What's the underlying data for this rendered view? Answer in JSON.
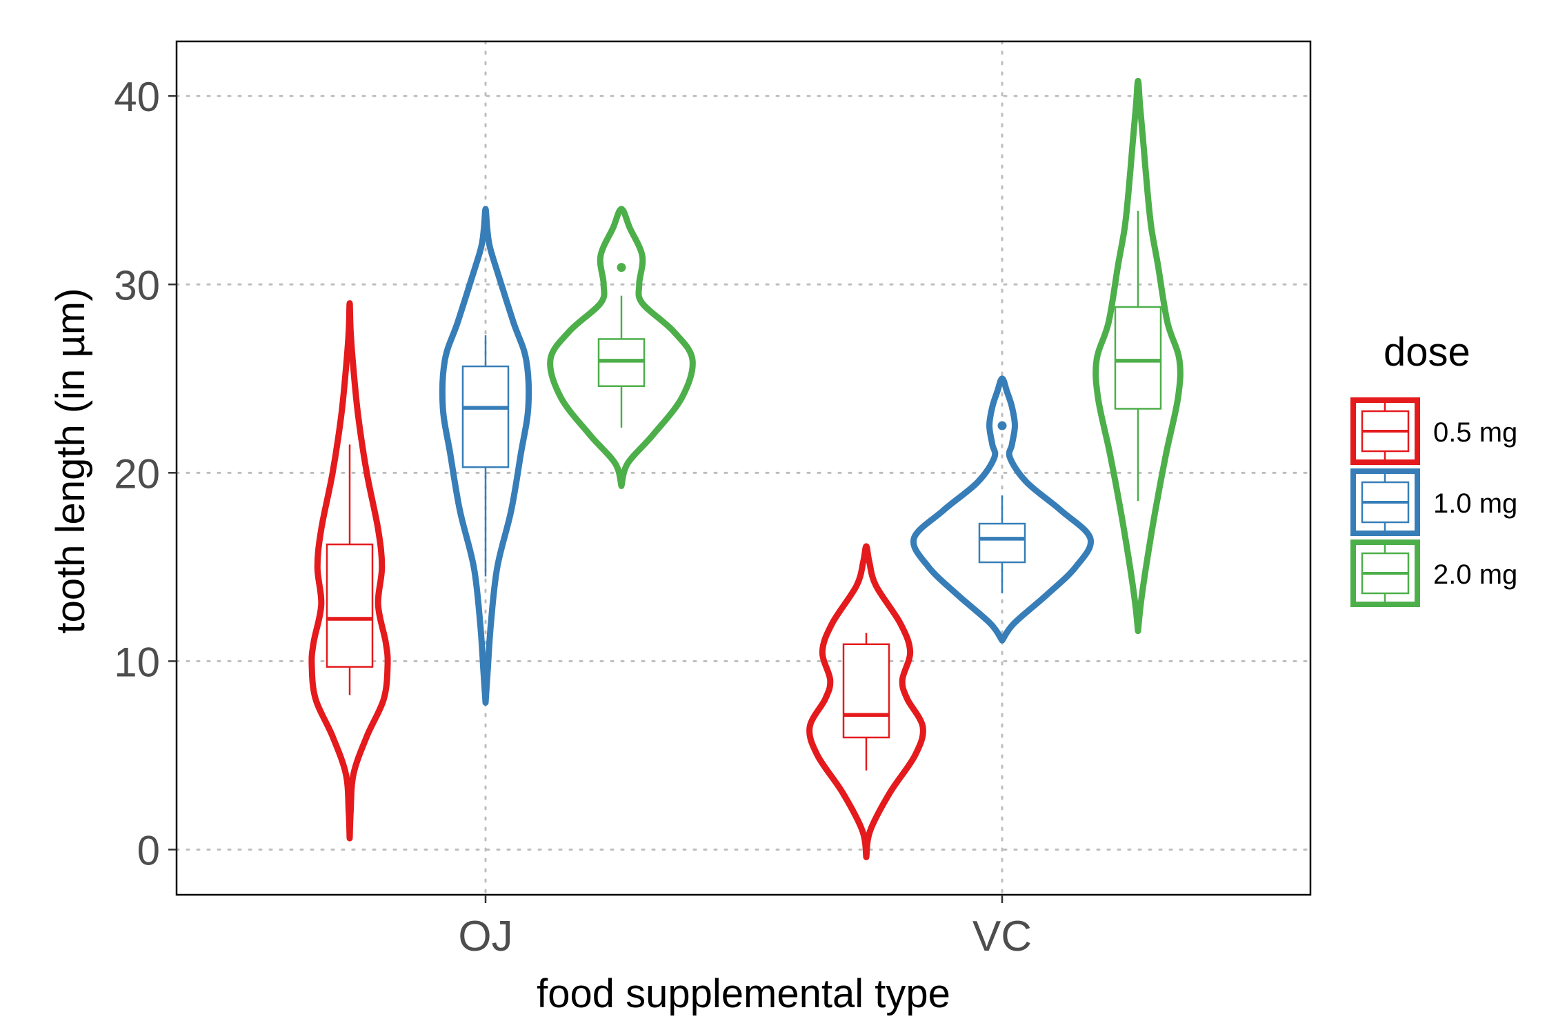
{
  "chart_data": {
    "type": "violin",
    "title": "",
    "xlabel": "food supplemental type",
    "ylabel": "tooth length (in µm)",
    "categories": [
      "OJ",
      "VC"
    ],
    "ylim": [
      -2.4,
      42.9
    ],
    "yticks": [
      0,
      10,
      20,
      30,
      40
    ],
    "grid": "dotted",
    "legend": {
      "title": "dose",
      "position": "right",
      "entries": [
        {
          "label": "0.5 mg",
          "color": "#e41a1c"
        },
        {
          "label": "1.0 mg",
          "color": "#377eb8"
        },
        {
          "label": "2.0 mg",
          "color": "#4daf4a"
        }
      ]
    },
    "series": [
      {
        "name": "0.5 mg",
        "color": "#e41a1c",
        "groups": [
          {
            "category": "OJ",
            "violin": [
              [
                0.6,
                0.0
              ],
              [
                2.0,
                0.01
              ],
              [
                4.0,
                0.04
              ],
              [
                6.0,
                0.18
              ],
              [
                8.0,
                0.36
              ],
              [
                9.8,
                0.4
              ],
              [
                11.0,
                0.38
              ],
              [
                13.0,
                0.3
              ],
              [
                15.0,
                0.34
              ],
              [
                17.0,
                0.3
              ],
              [
                20.0,
                0.18
              ],
              [
                23.0,
                0.09
              ],
              [
                25.5,
                0.04
              ],
              [
                27.5,
                0.01
              ],
              [
                29.0,
                0.0
              ]
            ],
            "box": {
              "whisker_low": 8.2,
              "q1": 9.7,
              "median": 12.25,
              "q3": 16.2,
              "whisker_high": 21.5
            }
          },
          {
            "category": "VC",
            "violin": [
              [
                -0.4,
                0.0
              ],
              [
                1.0,
                0.04
              ],
              [
                3.0,
                0.24
              ],
              [
                5.0,
                0.5
              ],
              [
                6.5,
                0.58
              ],
              [
                8.0,
                0.42
              ],
              [
                9.0,
                0.37
              ],
              [
                10.5,
                0.45
              ],
              [
                12.0,
                0.35
              ],
              [
                14.0,
                0.1
              ],
              [
                15.3,
                0.03
              ],
              [
                16.1,
                0.0
              ]
            ],
            "box": {
              "whisker_low": 4.2,
              "q1": 5.95,
              "median": 7.15,
              "q3": 10.9,
              "whisker_high": 11.5
            }
          }
        ]
      },
      {
        "name": "1.0 mg",
        "color": "#377eb8",
        "groups": [
          {
            "category": "OJ",
            "violin": [
              [
                7.8,
                0.0
              ],
              [
                9.5,
                0.02
              ],
              [
                12.0,
                0.05
              ],
              [
                15.0,
                0.11
              ],
              [
                18.0,
                0.24
              ],
              [
                21.0,
                0.33
              ],
              [
                23.5,
                0.4
              ],
              [
                26.0,
                0.38
              ],
              [
                28.0,
                0.26
              ],
              [
                30.5,
                0.12
              ],
              [
                32.0,
                0.04
              ],
              [
                33.0,
                0.015
              ],
              [
                34.0,
                0.0
              ]
            ],
            "box": {
              "whisker_low": 14.5,
              "q1": 20.3,
              "median": 23.45,
              "q3": 25.65,
              "whisker_high": 27.3
            }
          },
          {
            "category": "VC",
            "violin": [
              [
                11.1,
                0.0
              ],
              [
                12.0,
                0.12
              ],
              [
                13.5,
                0.45
              ],
              [
                15.0,
                0.75
              ],
              [
                16.5,
                0.9
              ],
              [
                18.0,
                0.6
              ],
              [
                19.5,
                0.25
              ],
              [
                20.8,
                0.08
              ],
              [
                21.5,
                0.1
              ],
              [
                22.5,
                0.13
              ],
              [
                23.5,
                0.1
              ],
              [
                24.3,
                0.05
              ],
              [
                25.0,
                0.0
              ]
            ],
            "box": {
              "whisker_low": 13.6,
              "q1": 15.25,
              "median": 16.5,
              "q3": 17.3,
              "whisker_high": 18.8
            },
            "outliers": [
              22.5
            ]
          }
        ]
      },
      {
        "name": "2.0 mg",
        "color": "#4daf4a",
        "groups": [
          {
            "category": "OJ",
            "violin": [
              [
                19.3,
                0.0
              ],
              [
                20.5,
                0.06
              ],
              [
                22.0,
                0.3
              ],
              [
                24.0,
                0.58
              ],
              [
                26.0,
                0.68
              ],
              [
                27.5,
                0.5
              ],
              [
                29.0,
                0.2
              ],
              [
                30.0,
                0.17
              ],
              [
                31.5,
                0.2
              ],
              [
                33.0,
                0.08
              ],
              [
                34.0,
                0.0
              ]
            ],
            "box": {
              "whisker_low": 22.4,
              "q1": 24.6,
              "median": 25.95,
              "q3": 27.1,
              "whisker_high": 29.4
            },
            "outliers": [
              30.9
            ]
          }
        ]
      }
    ]
  },
  "series_vc_green": {
    "category": "VC",
    "violin": [
      [
        11.6,
        0.0
      ],
      [
        13.0,
        0.02
      ],
      [
        15.0,
        0.06
      ],
      [
        18.0,
        0.13
      ],
      [
        21.0,
        0.21
      ],
      [
        24.0,
        0.3
      ],
      [
        26.0,
        0.31
      ],
      [
        28.0,
        0.22
      ],
      [
        31.0,
        0.15
      ],
      [
        33.0,
        0.1
      ],
      [
        35.0,
        0.07
      ],
      [
        37.5,
        0.04
      ],
      [
        39.5,
        0.015
      ],
      [
        40.8,
        0.0
      ]
    ],
    "box": {
      "whisker_low": 18.5,
      "q1": 23.4,
      "median": 25.95,
      "q3": 28.8,
      "whisker_high": 33.9
    }
  }
}
